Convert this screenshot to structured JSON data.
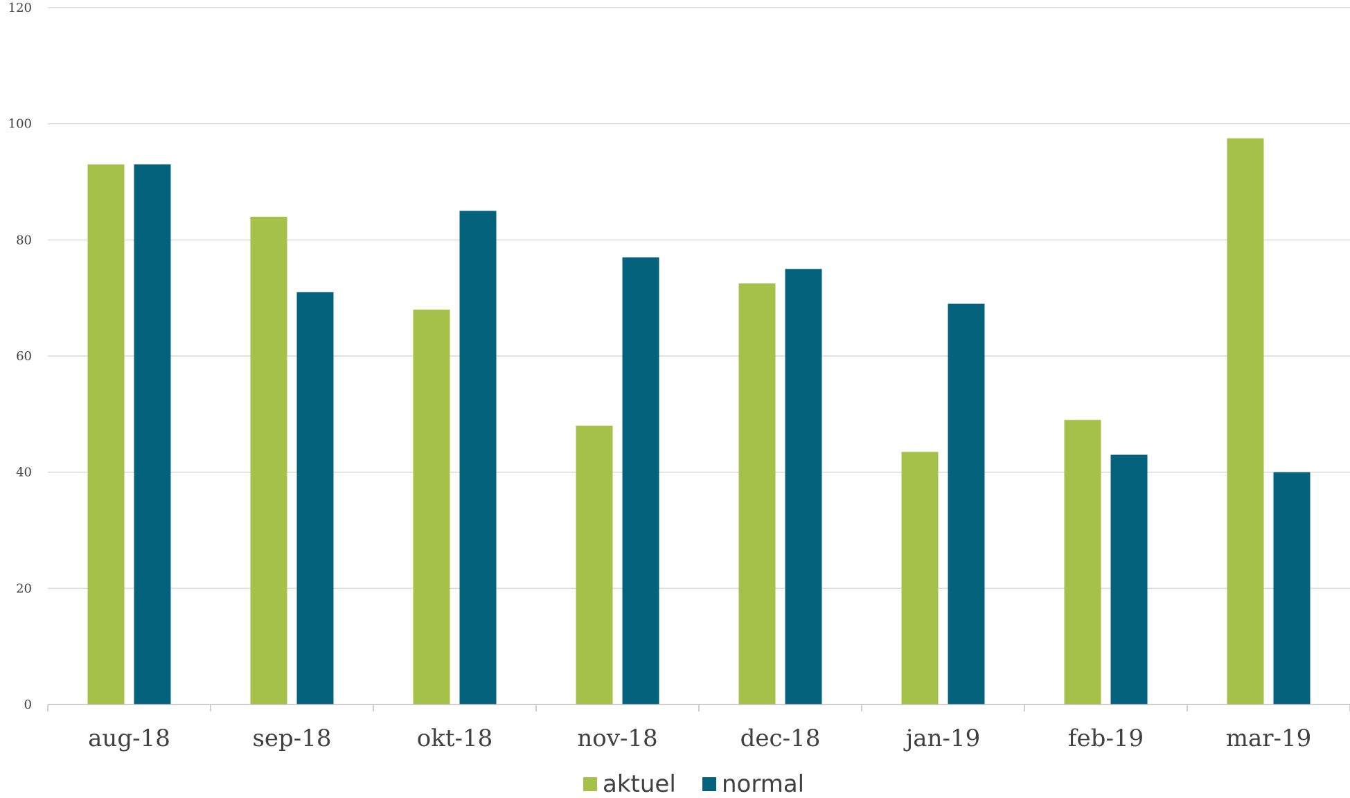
{
  "chart_data": {
    "type": "bar",
    "title": "",
    "xlabel": "",
    "ylabel": "",
    "categories": [
      "aug-18",
      "sep-18",
      "okt-18",
      "nov-18",
      "dec-18",
      "jan-19",
      "feb-19",
      "mar-19"
    ],
    "series": [
      {
        "name": "aktuel",
        "color": "#a6c14a",
        "values": [
          93,
          84,
          68,
          48,
          72.5,
          43.5,
          49,
          97.5
        ]
      },
      {
        "name": "normal",
        "color": "#05627c",
        "values": [
          93,
          71,
          85,
          77,
          75,
          69,
          43,
          40
        ]
      }
    ],
    "ylim": [
      0,
      120
    ],
    "yticks": [
      0,
      20,
      40,
      60,
      80,
      100,
      120
    ],
    "grid": true,
    "legend_position": "bottom-center"
  }
}
